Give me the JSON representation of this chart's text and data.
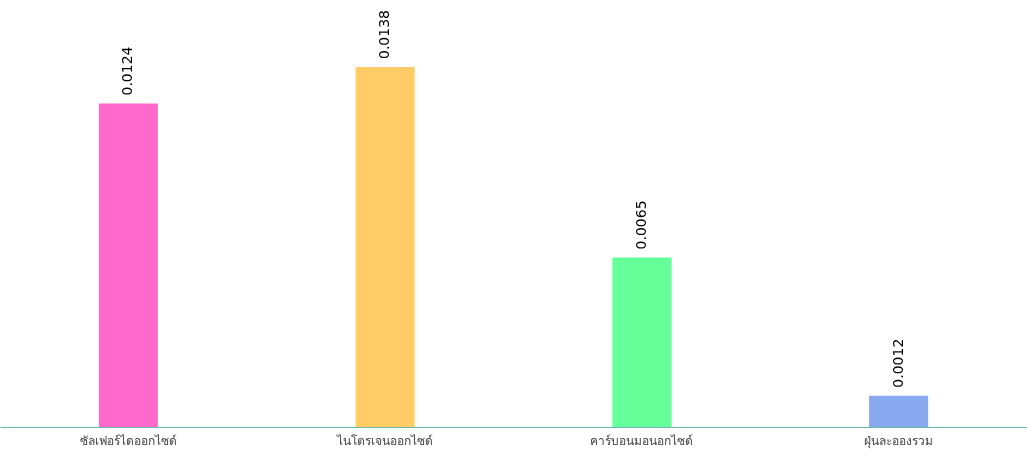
{
  "chart_data": {
    "type": "bar",
    "categories": [
      "ซัลเฟอร์ไดออกไซด์",
      "ไนโตรเจนออกไซด์",
      "คาร์บอนมอนอกไซด์",
      "ฝุ่นละอองรวม"
    ],
    "values": [
      0.0124,
      0.0138,
      0.0065,
      0.0012
    ],
    "colors": [
      "#ff69cc",
      "#ffcc66",
      "#66ff99",
      "#88a8f0"
    ],
    "data_labels": true
  }
}
